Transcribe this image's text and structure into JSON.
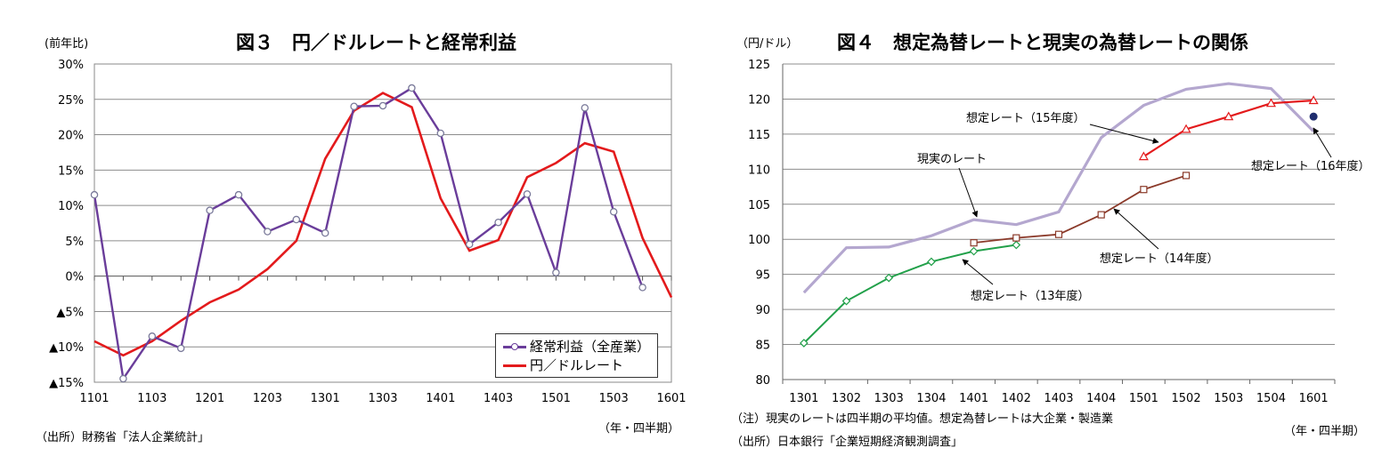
{
  "chart_data": [
    {
      "type": "line",
      "title": "図３　円／ドルレートと経常利益",
      "ylabel": "(前年比)",
      "xlabel": "（年・四半期）",
      "source": "（出所）財務省「法人企業統計」",
      "ylim": [
        -15,
        30
      ],
      "grid": true,
      "legend_position": "bottom-right",
      "y_ticks": [
        {
          "value": 30,
          "label": "30%"
        },
        {
          "value": 25,
          "label": "25%"
        },
        {
          "value": 20,
          "label": "20%"
        },
        {
          "value": 15,
          "label": "15%"
        },
        {
          "value": 10,
          "label": "10%"
        },
        {
          "value": 5,
          "label": "5%"
        },
        {
          "value": 0,
          "label": "0%"
        },
        {
          "value": -5,
          "label": "▲5%"
        },
        {
          "value": -10,
          "label": "▲10%"
        },
        {
          "value": -15,
          "label": "▲15%"
        }
      ],
      "categories": [
        "1101",
        "1102",
        "1103",
        "1104",
        "1201",
        "1202",
        "1203",
        "1204",
        "1301",
        "1302",
        "1303",
        "1304",
        "1401",
        "1402",
        "1403",
        "1404",
        "1501",
        "1502",
        "1503",
        "1504",
        "1601"
      ],
      "x_tick_labels": [
        "1101",
        "",
        "1103",
        "",
        "1201",
        "",
        "1203",
        "",
        "1301",
        "",
        "1303",
        "",
        "1401",
        "",
        "1403",
        "",
        "1501",
        "",
        "1503",
        "",
        "1601"
      ],
      "series": [
        {
          "name": "経常利益（全産業）",
          "color": "#6a3d9a",
          "marker": "circle",
          "values": [
            11.5,
            -14.5,
            -8.5,
            -10.2,
            9.3,
            11.5,
            6.3,
            8.0,
            6.1,
            24.0,
            24.1,
            26.6,
            20.2,
            4.5,
            7.6,
            11.6,
            0.5,
            23.8,
            9.1,
            -1.6,
            null
          ]
        },
        {
          "name": "円／ドルレート",
          "color": "#e31a1c",
          "marker": "none",
          "values": [
            -9.2,
            -11.2,
            -9.2,
            -6.3,
            -3.7,
            -1.9,
            1.0,
            5.0,
            16.6,
            23.4,
            25.9,
            23.9,
            11.0,
            3.6,
            5.1,
            14.0,
            16.0,
            18.8,
            17.6,
            5.4,
            -3.0
          ]
        }
      ]
    },
    {
      "type": "line",
      "title": "図４　想定為替レートと現実の為替レートの関係",
      "ylabel": "（円/ドル）",
      "xlabel": "（年・四半期）",
      "note": "（注）現実のレートは四半期の平均値。想定為替レートは大企業・製造業",
      "source": "（出所）日本銀行「企業短期経済観測調査」",
      "ylim": [
        80,
        125
      ],
      "grid": true,
      "y_ticks": [
        {
          "value": 125,
          "label": "125"
        },
        {
          "value": 120,
          "label": "120"
        },
        {
          "value": 115,
          "label": "115"
        },
        {
          "value": 110,
          "label": "110"
        },
        {
          "value": 105,
          "label": "105"
        },
        {
          "value": 100,
          "label": "100"
        },
        {
          "value": 95,
          "label": "95"
        },
        {
          "value": 90,
          "label": "90"
        },
        {
          "value": 85,
          "label": "85"
        },
        {
          "value": 80,
          "label": "80"
        }
      ],
      "categories": [
        "1301",
        "1302",
        "1303",
        "1304",
        "1401",
        "1402",
        "1403",
        "1404",
        "1501",
        "1502",
        "1503",
        "1504",
        "1601"
      ],
      "series": [
        {
          "name": "現実のレート",
          "color": "#b4a7cf",
          "marker": "none",
          "values": [
            92.4,
            98.8,
            98.9,
            100.5,
            102.8,
            102.1,
            103.9,
            114.5,
            119.1,
            121.4,
            122.2,
            121.5,
            115.4
          ]
        },
        {
          "name": "想定レート（13年度）",
          "color": "#22a04a",
          "marker": "diamond",
          "values": [
            85.2,
            91.2,
            94.5,
            96.8,
            98.3,
            99.2,
            null,
            null,
            null,
            null,
            null,
            null,
            null
          ]
        },
        {
          "name": "想定レート（14年度）",
          "color": "#8b3a2a",
          "marker": "square",
          "values": [
            null,
            null,
            null,
            null,
            99.5,
            100.2,
            100.7,
            103.5,
            107.1,
            109.1,
            null,
            null,
            null
          ]
        },
        {
          "name": "想定レート（15年度）",
          "color": "#e31a1c",
          "marker": "triangle",
          "values": [
            null,
            null,
            null,
            null,
            null,
            null,
            null,
            null,
            111.8,
            115.7,
            117.5,
            119.4,
            119.8
          ]
        },
        {
          "name": "想定レート（16年度）",
          "color": "#1f2d6e",
          "marker": "dot",
          "values": [
            null,
            null,
            null,
            null,
            null,
            null,
            null,
            null,
            null,
            null,
            null,
            null,
            117.5
          ]
        }
      ],
      "annotations": [
        {
          "text": "想定レート（15年度）"
        },
        {
          "text": "現実のレート"
        },
        {
          "text": "想定レート（16年度）"
        },
        {
          "text": "想定レート（14年度）"
        },
        {
          "text": "想定レート（13年度）"
        }
      ]
    }
  ]
}
